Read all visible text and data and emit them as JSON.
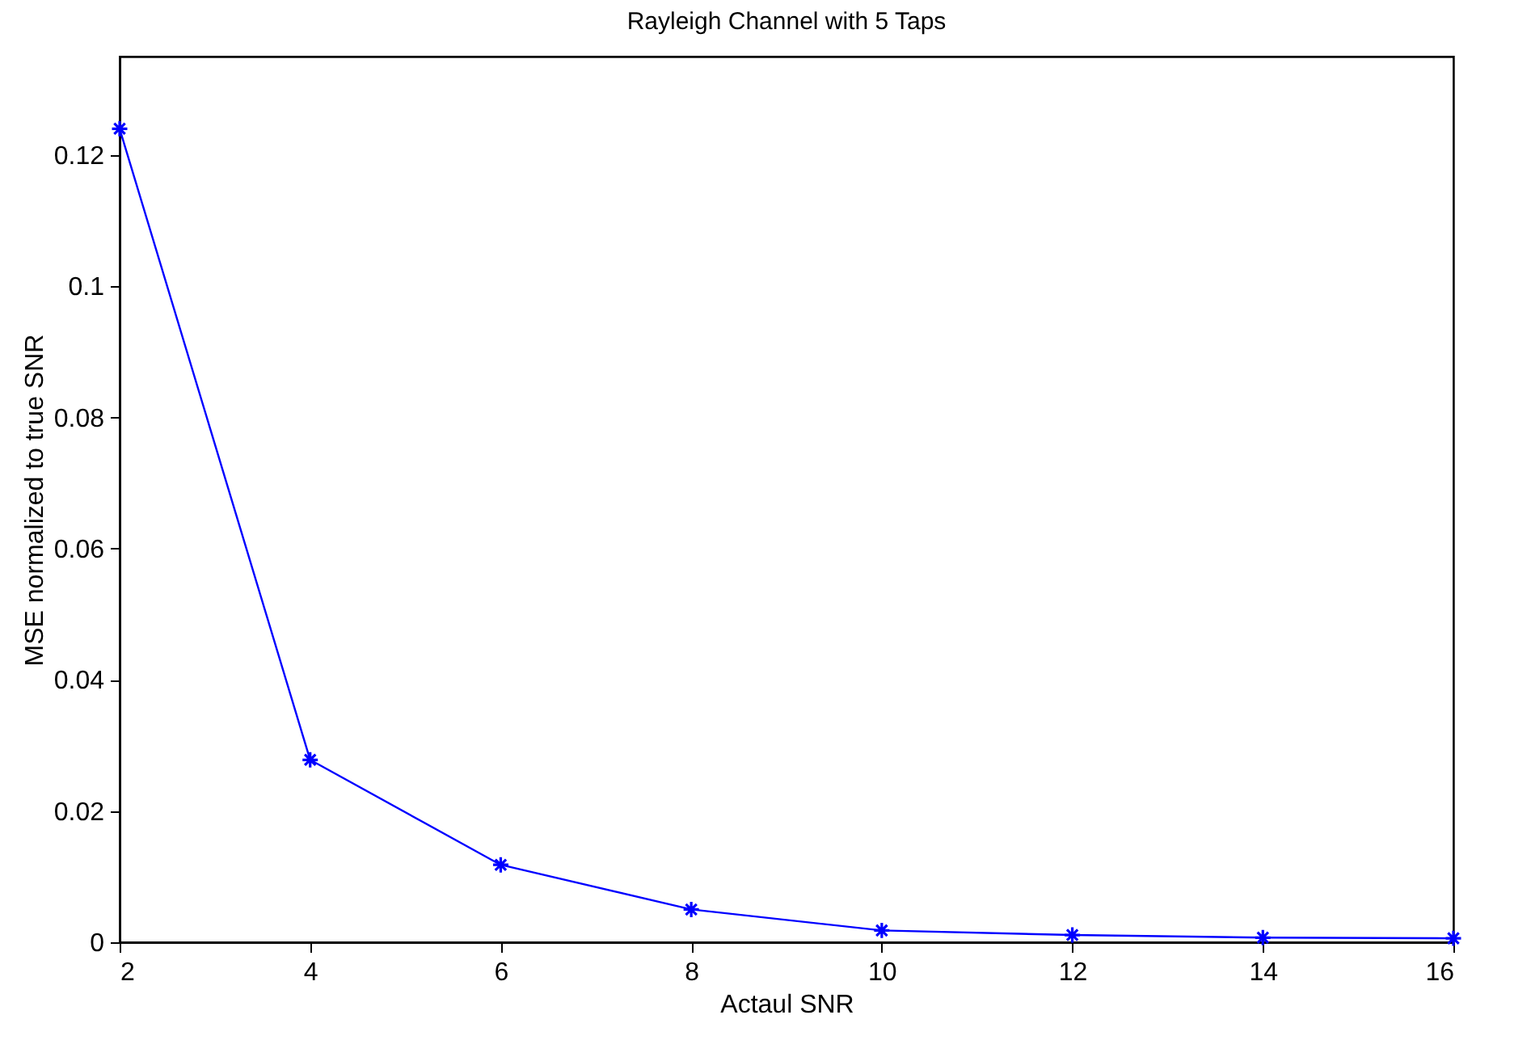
{
  "chart_data": {
    "type": "line",
    "title": "Rayleigh Channel with 5 Taps",
    "xlabel": "Actaul SNR",
    "ylabel": "MSE normalized to true SNR",
    "x": [
      2,
      4,
      6,
      8,
      10,
      12,
      14,
      16
    ],
    "series": [
      {
        "color": "#0000ff",
        "values": [
          0.124,
          0.0278,
          0.0118,
          0.005,
          0.0018,
          0.0011,
          0.0007,
          0.0006
        ]
      }
    ],
    "xlim": [
      2,
      16
    ],
    "xticks": [
      2,
      4,
      6,
      8,
      10,
      12,
      14,
      16
    ],
    "ylim": [
      0,
      0.135
    ],
    "yticks": [
      0,
      0.02,
      0.04,
      0.06,
      0.08,
      0.1,
      0.12
    ],
    "marker": "cross",
    "line_style": "solid"
  }
}
